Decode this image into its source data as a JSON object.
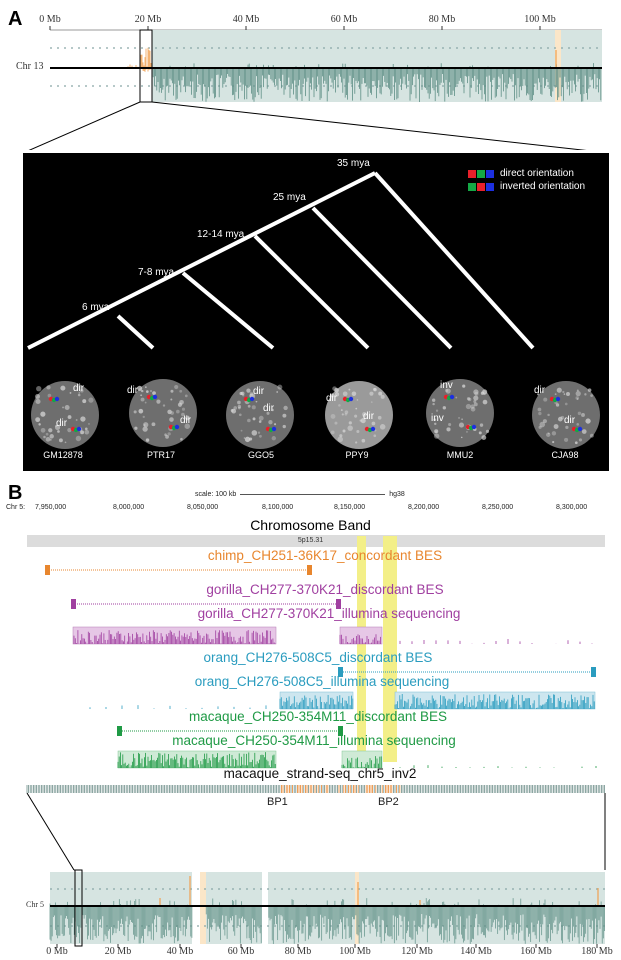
{
  "panels": {
    "a": "A",
    "b": "B"
  },
  "panel_a": {
    "axis_ticks": [
      "0 Mb",
      "20 Mb",
      "40 Mb",
      "60 Mb",
      "80 Mb",
      "100 Mb"
    ],
    "chromosome_label": "Chr 13",
    "tree": {
      "node_ages": [
        "6 mya",
        "7-8 mya",
        "12-14 mya",
        "25 mya",
        "35 mya"
      ],
      "legend": {
        "direct": "direct orientation",
        "inverted": "inverted orientation"
      },
      "colors": {
        "red": "#e8202a",
        "green": "#14a845",
        "blue": "#1c2fe0"
      },
      "cells": [
        {
          "id": "GM12878",
          "signals": [
            "dir",
            "dir"
          ]
        },
        {
          "id": "PTR17",
          "signals": [
            "dir",
            "dir"
          ]
        },
        {
          "id": "GGO5",
          "signals": [
            "dir",
            "dir"
          ]
        },
        {
          "id": "PPY9",
          "signals": [
            "dir",
            "dir"
          ]
        },
        {
          "id": "MMU2",
          "signals": [
            "inv",
            "inv"
          ]
        },
        {
          "id": "CJA98",
          "signals": [
            "dir",
            "dir"
          ]
        }
      ]
    }
  },
  "panel_b": {
    "scale": {
      "label": "scale:",
      "value": "100 kb",
      "assembly": "hg38"
    },
    "chr_label": "Chr 5:",
    "coords": [
      "7,950,000",
      "8,000,000",
      "8,050,000",
      "8,100,000",
      "8,150,000",
      "8,200,000",
      "8,250,000",
      "8,300,000"
    ],
    "chromosome_band_title": "Chromosome Band",
    "band": "5p15.31",
    "tracks": [
      {
        "label": "chimp_CH251-36K17_concordant BES",
        "color": "#e8862e"
      },
      {
        "label": "gorilla_CH277-370K21_discordant BES",
        "color": "#a03fa0"
      },
      {
        "label": "gorilla_CH277-370K21_illumina sequencing",
        "color": "#a03fa0"
      },
      {
        "label": "orang_CH276-508C5_discordant BES",
        "color": "#2a9cbf"
      },
      {
        "label": "orang_CH276-508C5_illumina sequencing",
        "color": "#2a9cbf"
      },
      {
        "label": "macaque_CH250-354M11_discordant BES",
        "color": "#1f9a45"
      },
      {
        "label": "macaque_CH250-354M11_illumina sequencing",
        "color": "#1f9a45"
      },
      {
        "label": "macaque_strand-seq_chr5_inv2",
        "color": "#111111"
      }
    ],
    "breakpoints": [
      "BP1",
      "BP2"
    ],
    "bottom_chr_label": "Chr 5",
    "bottom_ticks": [
      "0 Mb",
      "20 Mb",
      "40 Mb",
      "60 Mb",
      "80 Mb",
      "100 Mb",
      "120 Mb",
      "140 Mb",
      "160 Mb",
      "180 Mb"
    ]
  },
  "colors": {
    "track_bg": "#d6e4e1",
    "signal": "#5f8f86",
    "orange": "#f0a050",
    "highlight": "#f3ef88"
  }
}
